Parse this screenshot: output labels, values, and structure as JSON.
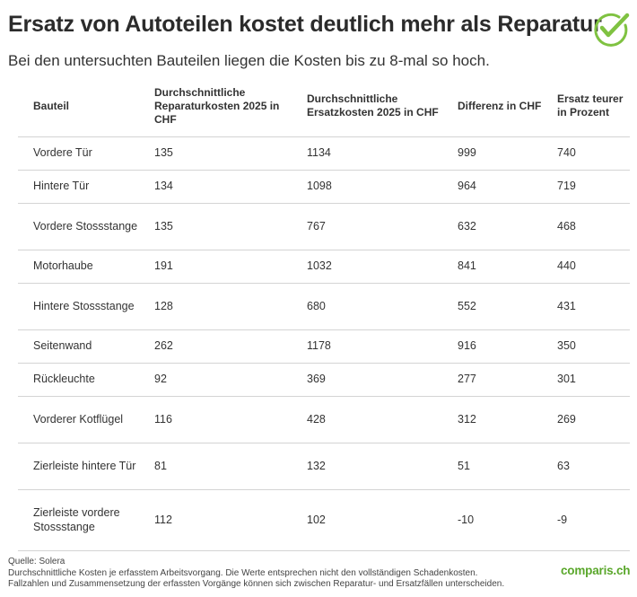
{
  "header": {
    "title": "Ersatz von Autoteilen kostet deutlich mehr als Reparatur",
    "subtitle": "Bei den untersuchten Bauteilen liegen die Kosten bis zu 8-mal so hoch.",
    "check_icon": "checkmark-circle-icon",
    "accent_color": "#7fc241"
  },
  "chart_data": {
    "type": "table",
    "columns": [
      "Bauteil",
      "Durchschnittliche Reparaturkosten 2025 in CHF",
      "Durchschnittliche Ersatzkosten 2025 in CHF",
      "Differenz in CHF",
      "Ersatz teurer in Prozent"
    ],
    "rows": [
      [
        "Vordere Tür",
        "135",
        "1134",
        "999",
        "740"
      ],
      [
        "Hintere Tür",
        "134",
        "1098",
        "964",
        "719"
      ],
      [
        "Vordere Stossstange",
        "135",
        "767",
        "632",
        "468"
      ],
      [
        "Motorhaube",
        "191",
        "1032",
        "841",
        "440"
      ],
      [
        "Hintere Stossstange",
        "128",
        "680",
        "552",
        "431"
      ],
      [
        "Seitenwand",
        "262",
        "1178",
        "916",
        "350"
      ],
      [
        "Rückleuchte",
        "92",
        "369",
        "277",
        "301"
      ],
      [
        "Vorderer Kotflügel",
        "116",
        "428",
        "312",
        "269"
      ],
      [
        "Zierleiste hintere Tür",
        "81",
        "132",
        "51",
        "63"
      ],
      [
        "Zierleiste vordere Stossstange",
        "112",
        "102",
        "-10",
        "-9"
      ]
    ]
  },
  "footer": {
    "source": "Quelle: Solera",
    "note1": "Durchschnittliche Kosten je erfasstem Arbeitsvorgang. Die Werte entsprechen nicht den vollständigen Schadenkosten.",
    "note2": "Fallzahlen und Zusammensetzung der erfassten Vorgänge können sich zwischen Reparatur- und Ersatzfällen unterscheiden.",
    "logo_text": "comparis.ch"
  }
}
